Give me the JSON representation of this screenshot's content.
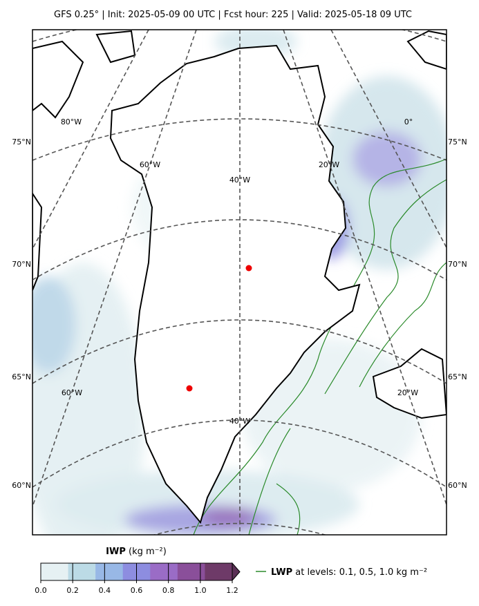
{
  "header": {
    "title": "GFS 0.25$^\\circ$  |  Init: 2025-05-09 00 UTC  |  Fcst hour: 225  |  Valid: 2025-05-18 09 UTC"
  },
  "map": {
    "lat_labels_left": [
      "75°N",
      "70°N",
      "65°N",
      "60°N"
    ],
    "lat_labels_right": [
      "75°N",
      "70°N",
      "65°N",
      "60°N"
    ],
    "lon_labels": [
      "80°W",
      "0°",
      "60°W",
      "20°W",
      "40°W",
      "60°W",
      "20°W",
      "40°W"
    ]
  },
  "colorbar": {
    "title_bold": "IWP",
    "title_unit": "(kg m⁻²)",
    "range": [
      0,
      1.2
    ],
    "colors": [
      "#e6f1f3",
      "#bcdbe6",
      "#98b8e6",
      "#8d8de0",
      "#9a6cc6",
      "#8a4f9a",
      "#6e3a68"
    ],
    "ticks": [
      {
        "value": 0,
        "label": "0.0"
      },
      {
        "value": 0.2,
        "label": "0.2"
      },
      {
        "value": 0.4,
        "label": "0.4"
      },
      {
        "value": 0.6,
        "label": "0.6"
      },
      {
        "value": 0.8,
        "label": "0.8"
      },
      {
        "value": 1.0,
        "label": "1.0"
      },
      {
        "value": 1.2,
        "label": "1.2"
      }
    ]
  },
  "legend": {
    "label_bold": "LWP",
    "label_text": "at levels: 0.1, 0.5, 1.0  kg m⁻²",
    "color": "#2a8a2a"
  }
}
